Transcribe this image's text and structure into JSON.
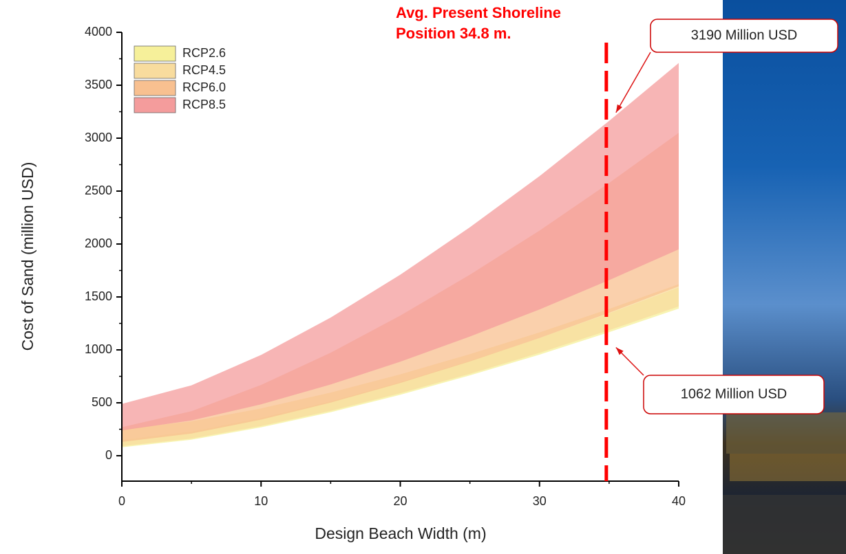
{
  "chart_data": {
    "type": "band",
    "xlabel": "Design Beach Width (m)",
    "ylabel": "Cost of Sand (million USD)",
    "x": [
      0,
      5,
      10,
      15,
      20,
      25,
      30,
      35,
      40
    ],
    "series": [
      {
        "name": "RCP2.6",
        "color": "#f6f09a",
        "lower": [
          80,
          151,
          268,
          411,
          576,
          759,
          955,
          1167,
          1390
        ],
        "upper": [
          150,
          228,
          357,
          514,
          696,
          896,
          1112,
          1345,
          1590
        ]
      },
      {
        "name": "RCP4.5",
        "color": "#f8dc9e",
        "lower": [
          90,
          162,
          280,
          424,
          590,
          774,
          972,
          1186,
          1410
        ],
        "upper": [
          250,
          325,
          447,
          597,
          769,
          960,
          1165,
          1387,
          1620
        ]
      },
      {
        "name": "RCP6.0",
        "color": "#f8c090",
        "lower": [
          130,
          210,
          341,
          502,
          687,
          891,
          1112,
          1350,
          1600
        ],
        "upper": [
          270,
          421,
          669,
          973,
          1324,
          1710,
          2127,
          2577,
          3050
        ]
      },
      {
        "name": "RCP8.5",
        "color": "#f49c9c",
        "lower": [
          240,
          333,
          486,
          673,
          888,
          1126,
          1382,
          1659,
          1950
        ],
        "upper": [
          490,
          665,
          952,
          1305,
          1710,
          2158,
          2641,
          3163,
          3710
        ]
      }
    ],
    "xlim": [
      0,
      40
    ],
    "xticks": [
      0,
      10,
      20,
      30,
      40
    ],
    "ylim": [
      -240,
      4000
    ],
    "yticks": [
      0,
      500,
      1000,
      1500,
      2000,
      2500,
      3000,
      3500,
      4000
    ],
    "legend": "upper-left",
    "vline": {
      "x": 34.8,
      "color": "#ff0000",
      "label_lines": [
        "Avg. Present Shoreline",
        "Position 34.8 m."
      ]
    },
    "callouts": [
      {
        "value": 3190,
        "label": "3190 Million USD"
      },
      {
        "value": 1062,
        "label": "1062 Million USD"
      }
    ]
  }
}
